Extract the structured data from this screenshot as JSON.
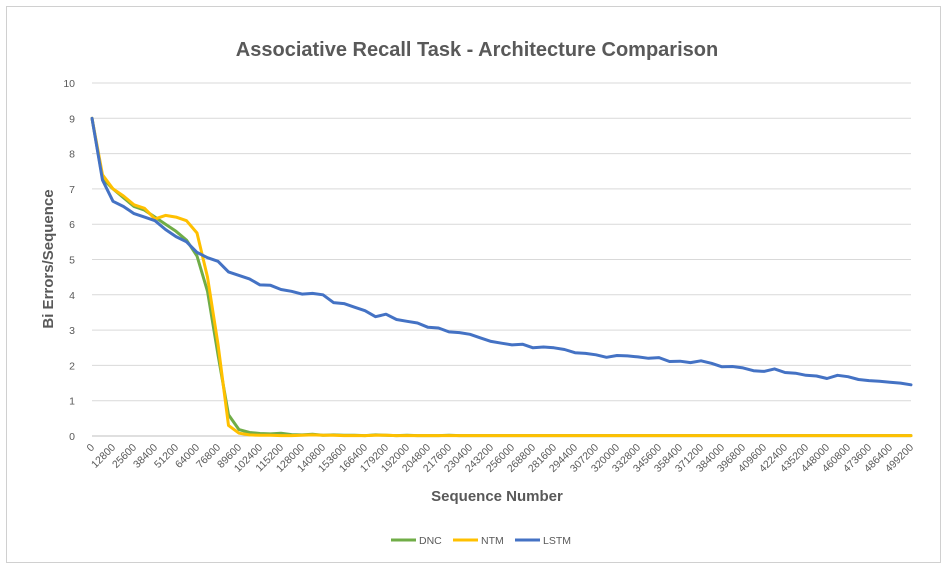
{
  "chart_data": {
    "type": "line",
    "title": "Associative Recall Task - Architecture Comparison",
    "xlabel": "Sequence Number",
    "ylabel": "Bi Errors/Sequence",
    "ylim": [
      0,
      10
    ],
    "yticks": [
      "0",
      "1",
      "2",
      "3",
      "4",
      "5",
      "6",
      "7",
      "8",
      "9",
      "10"
    ],
    "x_tick_labels": [
      "0",
      "12800",
      "25600",
      "38400",
      "51200",
      "64000",
      "76800",
      "89600",
      "102400",
      "115200",
      "128000",
      "140800",
      "153600",
      "166400",
      "179200",
      "192000",
      "204800",
      "217600",
      "230400",
      "243200",
      "256000",
      "268800",
      "281600",
      "294400",
      "307200",
      "320000",
      "332800",
      "345600",
      "358400",
      "371200",
      "384000",
      "396800",
      "409600",
      "422400",
      "435200",
      "448000",
      "460800",
      "473600",
      "486400",
      "499200"
    ],
    "xlim": [
      0,
      499200
    ],
    "grid": true,
    "legend_position": "bottom",
    "series": [
      {
        "name": "DNC",
        "color": "#70ad47",
        "x": [
          0,
          6400,
          12800,
          19200,
          25600,
          32000,
          38400,
          44800,
          51200,
          57600,
          64000,
          70400,
          76800,
          83200,
          89600,
          96000,
          102400,
          108800,
          115200,
          121600,
          128000,
          134400,
          140800,
          147200,
          153600,
          160000,
          166400,
          172800,
          179200,
          185600,
          192000,
          198400,
          204800,
          211200,
          217600,
          224000,
          230400,
          499200
        ],
        "values": [
          9.0,
          7.3,
          7.0,
          6.75,
          6.5,
          6.4,
          6.2,
          6.0,
          5.8,
          5.55,
          5.1,
          4.1,
          2.3,
          0.6,
          0.18,
          0.1,
          0.07,
          0.06,
          0.08,
          0.04,
          0.03,
          0.05,
          0.02,
          0.03,
          0.02,
          0.02,
          0.01,
          0.03,
          0.02,
          0.01,
          0.02,
          0.01,
          0.01,
          0.01,
          0.02,
          0.01,
          0.01,
          0.01
        ]
      },
      {
        "name": "NTM",
        "color": "#ffc000",
        "x": [
          0,
          6400,
          12800,
          19200,
          25600,
          32000,
          38400,
          44800,
          51200,
          57600,
          64000,
          70400,
          76800,
          83200,
          89600,
          96000,
          102400,
          108800,
          115200,
          121600,
          128000,
          134400,
          140800,
          147200,
          153600,
          160000,
          166400,
          172800,
          179200,
          185600,
          192000,
          198400,
          204800,
          211200,
          217600,
          224000,
          230400,
          499200
        ],
        "values": [
          9.0,
          7.4,
          7.0,
          6.8,
          6.55,
          6.45,
          6.15,
          6.25,
          6.2,
          6.1,
          5.75,
          4.5,
          2.6,
          0.3,
          0.08,
          0.03,
          0.02,
          0.02,
          0.01,
          0.01,
          0.02,
          0.03,
          0.02,
          0.02,
          0.01,
          0.01,
          0.01,
          0.02,
          0.02,
          0.01,
          0.01,
          0.01,
          0.01,
          0.01,
          0.01,
          0.01,
          0.01,
          0.01
        ]
      },
      {
        "name": "LSTM",
        "color": "#4472c4",
        "x": [
          0,
          6400,
          12800,
          19200,
          25600,
          32000,
          38400,
          44800,
          51200,
          57600,
          64000,
          70400,
          76800,
          83200,
          89600,
          96000,
          102400,
          108800,
          115200,
          121600,
          128000,
          134400,
          140800,
          147200,
          153600,
          160000,
          166400,
          172800,
          179200,
          185600,
          192000,
          198400,
          204800,
          211200,
          217600,
          224000,
          230400,
          236800,
          243200,
          249600,
          256000,
          262400,
          268800,
          275200,
          281600,
          288000,
          294400,
          300800,
          307200,
          313600,
          320000,
          326400,
          332800,
          339200,
          345600,
          352000,
          358400,
          364800,
          371200,
          377600,
          384000,
          390400,
          396800,
          403200,
          409600,
          416000,
          422400,
          428800,
          435200,
          441600,
          448000,
          454400,
          460800,
          467200,
          473600,
          480000,
          486400,
          492800,
          499200
        ],
        "values": [
          9.0,
          7.25,
          6.65,
          6.5,
          6.3,
          6.2,
          6.1,
          5.85,
          5.65,
          5.5,
          5.2,
          5.05,
          4.95,
          4.65,
          4.55,
          4.45,
          4.28,
          4.27,
          4.15,
          4.1,
          4.02,
          4.04,
          4.0,
          3.78,
          3.75,
          3.65,
          3.55,
          3.38,
          3.45,
          3.3,
          3.25,
          3.2,
          3.08,
          3.06,
          2.95,
          2.93,
          2.88,
          2.78,
          2.68,
          2.63,
          2.58,
          2.6,
          2.5,
          2.52,
          2.5,
          2.45,
          2.36,
          2.34,
          2.3,
          2.23,
          2.28,
          2.27,
          2.24,
          2.2,
          2.22,
          2.11,
          2.12,
          2.08,
          2.13,
          2.06,
          1.96,
          1.97,
          1.93,
          1.85,
          1.83,
          1.9,
          1.8,
          1.78,
          1.72,
          1.7,
          1.63,
          1.72,
          1.68,
          1.6,
          1.57,
          1.55,
          1.52,
          1.5,
          1.45
        ]
      }
    ]
  }
}
